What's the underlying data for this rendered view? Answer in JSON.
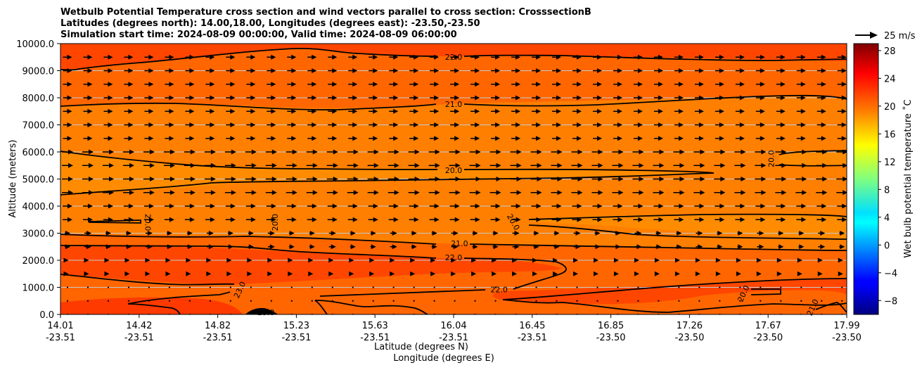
{
  "title_lines": [
    "Wetbulb Potential Temperature cross section and wind vectors parallel to cross section: CrosssectionB",
    "Latitudes (degrees north): 14.00,18.00, Longitudes (degrees east): -23.50,-23.50",
    "Simulation start time: 2024-08-09 00:00:00, Valid time: 2024-08-09 06:00:00"
  ],
  "quiver_key": "25 m/s",
  "chart_data": {
    "type": "contour",
    "title": "Wetbulb Potential Temperature cross section and wind vectors parallel to cross section: CrosssectionB",
    "ylabel": "Altitude (meters)",
    "xlabel_lines": [
      "Latitude (degrees N)",
      "Longitude (degrees E)"
    ],
    "ylim": [
      0,
      10000
    ],
    "y_ticks": [
      0,
      1000,
      2000,
      3000,
      4000,
      5000,
      6000,
      7000,
      8000,
      9000,
      10000
    ],
    "y_tick_labels": [
      "0.0",
      "1000.0",
      "2000.0",
      "3000.0",
      "4000.0",
      "5000.0",
      "6000.0",
      "7000.0",
      "8000.0",
      "9000.0",
      "10000.0"
    ],
    "x_tick_labels": [
      {
        "lat": "14.01",
        "lon": "-23.51"
      },
      {
        "lat": "14.42",
        "lon": "-23.51"
      },
      {
        "lat": "14.82",
        "lon": "-23.51"
      },
      {
        "lat": "15.23",
        "lon": "-23.51"
      },
      {
        "lat": "15.63",
        "lon": "-23.51"
      },
      {
        "lat": "16.04",
        "lon": "-23.51"
      },
      {
        "lat": "16.45",
        "lon": "-23.51"
      },
      {
        "lat": "16.85",
        "lon": "-23.50"
      },
      {
        "lat": "17.26",
        "lon": "-23.50"
      },
      {
        "lat": "17.67",
        "lon": "-23.50"
      },
      {
        "lat": "17.99",
        "lon": "-23.50"
      }
    ],
    "grid": "horizontal",
    "fill_colors": {
      "22_plus": "#ff4600",
      "21_22": "#ff6600",
      "20_21": "#ff7f00",
      "lt_20": "#ff8c00"
    },
    "contour_labels": [
      {
        "text": "22.0",
        "lat": 16.0,
        "alt": 9480,
        "angle": 0
      },
      {
        "text": "21.0",
        "lat": 16.0,
        "alt": 7740,
        "angle": 0
      },
      {
        "text": "20.0",
        "lat": 16.0,
        "alt": 5300,
        "angle": 0
      },
      {
        "text": "20.0",
        "lat": 17.61,
        "alt": 5750,
        "angle": -90
      },
      {
        "text": "20.0",
        "lat": 14.45,
        "alt": 3400,
        "angle": 90
      },
      {
        "text": "20.0",
        "lat": 15.1,
        "alt": 3400,
        "angle": -90
      },
      {
        "text": "20.0",
        "lat": 16.3,
        "alt": 3400,
        "angle": 60
      },
      {
        "text": "21.0",
        "lat": 16.03,
        "alt": 2600,
        "angle": 0
      },
      {
        "text": "22.0",
        "lat": 16.0,
        "alt": 2080,
        "angle": 0
      },
      {
        "text": "22.0",
        "lat": 16.23,
        "alt": 900,
        "angle": 0
      },
      {
        "text": "23.0",
        "lat": 14.92,
        "alt": 900,
        "angle": -65
      },
      {
        "text": "20.0",
        "lat": 17.47,
        "alt": 760,
        "angle": -65
      },
      {
        "text": "23.0",
        "lat": 15.05,
        "alt": 50,
        "angle": 0
      },
      {
        "text": "21.0",
        "lat": 17.82,
        "alt": 250,
        "angle": -65
      }
    ],
    "colorbar": {
      "label": "Wet bulb potential temperature ˚C",
      "range": [
        -10,
        29
      ],
      "ticks": [
        -8,
        -4,
        0,
        4,
        8,
        12,
        16,
        20,
        24,
        28
      ],
      "tick_labels": [
        "−8",
        "−4",
        "0",
        "4",
        "8",
        "12",
        "16",
        "20",
        "24",
        "28"
      ],
      "colormap": "jet"
    }
  }
}
